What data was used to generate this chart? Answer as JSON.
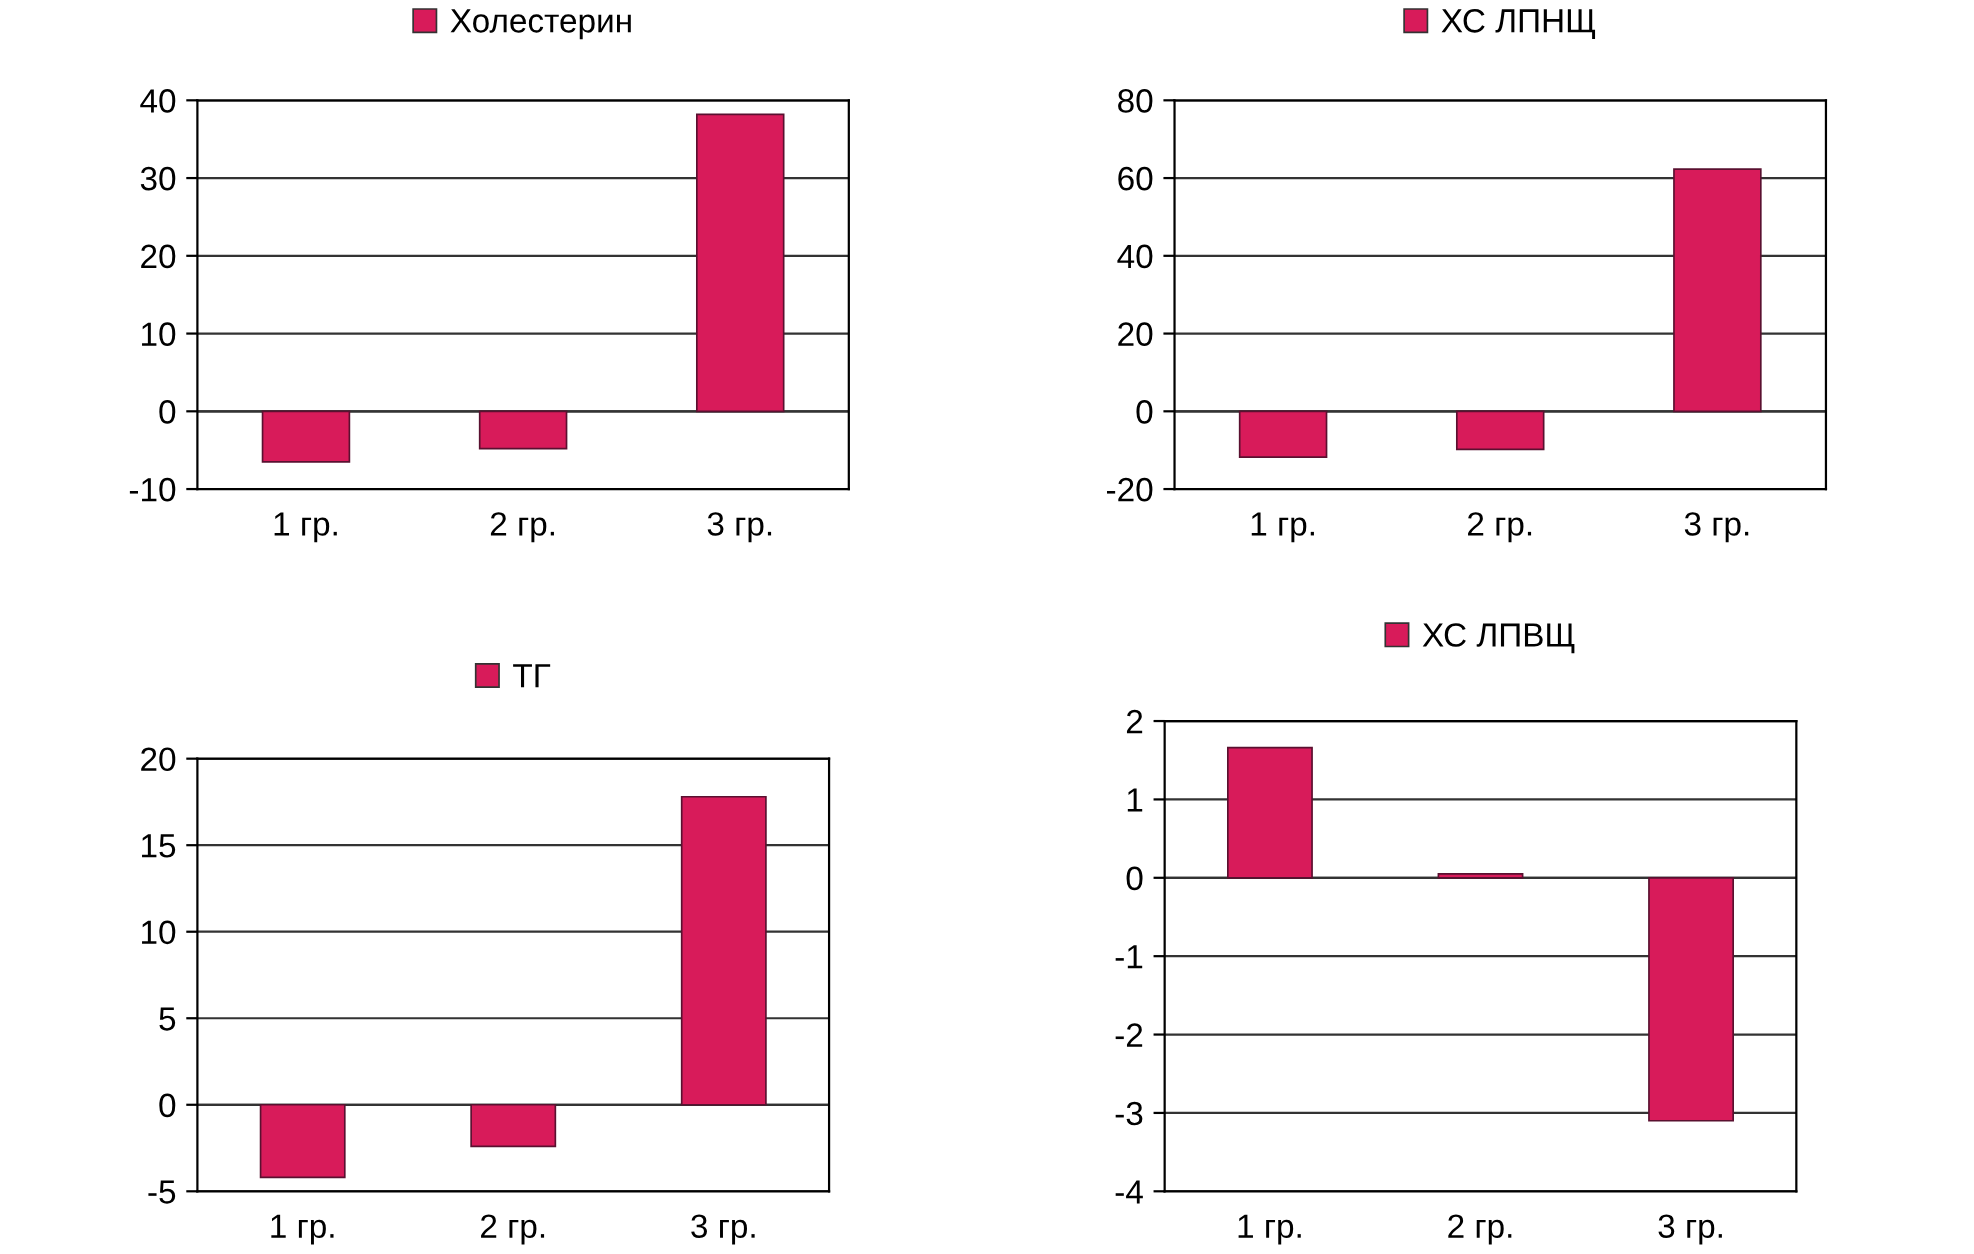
{
  "chart_data": [
    {
      "type": "bar",
      "categories": [
        "1 гр.",
        "2 гр.",
        "3 гр."
      ],
      "ylim": [
        -10,
        40
      ],
      "yticks": [
        -10,
        0,
        10,
        20,
        30,
        40
      ],
      "grid": "y",
      "legend": "top",
      "series": [
        {
          "name": "Холестерин",
          "color": "#d81b5a",
          "values": [
            -6.5,
            -4.8,
            38.2
          ]
        }
      ]
    },
    {
      "type": "bar",
      "categories": [
        "1 гр.",
        "2 гр.",
        "3 гр."
      ],
      "ylim": [
        -20,
        80
      ],
      "yticks": [
        -20,
        0,
        20,
        40,
        60,
        80
      ],
      "grid": "y",
      "legend": "top",
      "series": [
        {
          "name": "ХС ЛПНЩ",
          "color": "#d81b5a",
          "values": [
            -11.8,
            -9.8,
            62.3
          ]
        }
      ]
    },
    {
      "type": "bar",
      "categories": [
        "1 гр.",
        "2 гр.",
        "3 гр."
      ],
      "ylim": [
        -5,
        20
      ],
      "yticks": [
        -5,
        0,
        5,
        10,
        15,
        20
      ],
      "grid": "y",
      "legend": "top",
      "series": [
        {
          "name": "ТГ",
          "color": "#d81b5a",
          "values": [
            -4.2,
            -2.4,
            17.8
          ]
        }
      ]
    },
    {
      "type": "bar",
      "categories": [
        "1 гр.",
        "2 гр.",
        "3 гр."
      ],
      "ylim": [
        -4,
        2
      ],
      "yticks": [
        -4,
        -3,
        -2,
        -1,
        0,
        1,
        2
      ],
      "grid": "y",
      "legend": "top",
      "series": [
        {
          "name": "ХС ЛПВЩ",
          "color": "#d81b5a",
          "values": [
            1.66,
            0.05,
            -3.1
          ]
        }
      ]
    }
  ]
}
